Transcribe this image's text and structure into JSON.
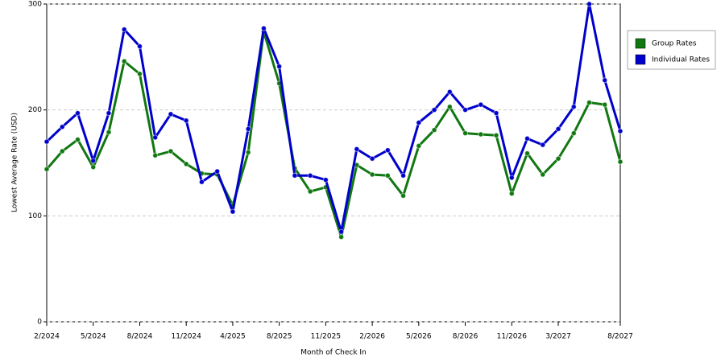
{
  "chart_data": {
    "type": "line",
    "x_label": "Month of Check In",
    "y_label": "Lowest Average Rate (USD)",
    "categories": [
      "2/2024",
      null,
      null,
      "5/2024",
      null,
      null,
      "8/2024",
      null,
      null,
      "11/2024",
      null,
      null,
      "4/2025",
      null,
      null,
      "8/2025",
      null,
      null,
      "11/2025",
      null,
      null,
      "2/2026",
      null,
      null,
      "5/2026",
      null,
      null,
      "8/2026",
      null,
      null,
      "11/2026",
      null,
      null,
      "3/2027",
      null,
      null,
      null,
      "8/2027"
    ],
    "series": [
      {
        "name": "Group Rates",
        "color": "#117711",
        "values": [
          144,
          161,
          172,
          146,
          179,
          246,
          234,
          157,
          161,
          149,
          140,
          139,
          110,
          160,
          274,
          225,
          145,
          123,
          127,
          80,
          148,
          139,
          138,
          119,
          166,
          181,
          203,
          178,
          177,
          176,
          121,
          159,
          139,
          154,
          178,
          207,
          205,
          151
        ]
      },
      {
        "name": "Individual Rates",
        "color": "#0000cc",
        "values": [
          170,
          184,
          197,
          152,
          197,
          276,
          260,
          174,
          196,
          190,
          132,
          142,
          104,
          182,
          277,
          241,
          138,
          138,
          134,
          85,
          163,
          154,
          162,
          138,
          188,
          200,
          217,
          200,
          205,
          197,
          136,
          173,
          167,
          182,
          203,
          300,
          228,
          180
        ]
      }
    ],
    "ylim": [
      0,
      300
    ],
    "yticks": [
      0,
      100,
      200,
      300
    ],
    "grid": true,
    "legend": "right"
  }
}
